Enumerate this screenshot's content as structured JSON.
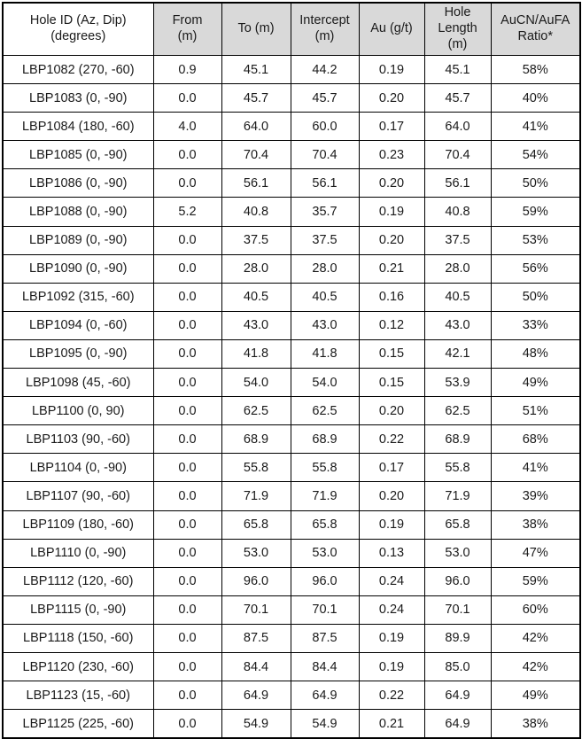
{
  "table": {
    "columns": [
      {
        "key": "hole_id",
        "label": "Hole ID (Az, Dip)\n(degrees)"
      },
      {
        "key": "from_m",
        "label": "From\n(m)"
      },
      {
        "key": "to_m",
        "label": "To (m)"
      },
      {
        "key": "intercept_m",
        "label": "Intercept\n(m)"
      },
      {
        "key": "au_gpt",
        "label": "Au (g/t)"
      },
      {
        "key": "hole_length_m",
        "label": "Hole\nLength\n(m)"
      },
      {
        "key": "aucn_aufa_ratio",
        "label": "AuCN/AuFA\nRatio*"
      }
    ],
    "rows": [
      {
        "hole_id": "LBP1082 (270, -60)",
        "from_m": "0.9",
        "to_m": "45.1",
        "intercept_m": "44.2",
        "au_gpt": "0.19",
        "hole_length_m": "45.1",
        "aucn_aufa_ratio": "58%"
      },
      {
        "hole_id": "LBP1083 (0, -90)",
        "from_m": "0.0",
        "to_m": "45.7",
        "intercept_m": "45.7",
        "au_gpt": "0.20",
        "hole_length_m": "45.7",
        "aucn_aufa_ratio": "40%"
      },
      {
        "hole_id": "LBP1084 (180, -60)",
        "from_m": "4.0",
        "to_m": "64.0",
        "intercept_m": "60.0",
        "au_gpt": "0.17",
        "hole_length_m": "64.0",
        "aucn_aufa_ratio": "41%"
      },
      {
        "hole_id": "LBP1085 (0, -90)",
        "from_m": "0.0",
        "to_m": "70.4",
        "intercept_m": "70.4",
        "au_gpt": "0.23",
        "hole_length_m": "70.4",
        "aucn_aufa_ratio": "54%"
      },
      {
        "hole_id": "LBP1086 (0, -90)",
        "from_m": "0.0",
        "to_m": "56.1",
        "intercept_m": "56.1",
        "au_gpt": "0.20",
        "hole_length_m": "56.1",
        "aucn_aufa_ratio": "50%"
      },
      {
        "hole_id": "LBP1088 (0, -90)",
        "from_m": "5.2",
        "to_m": "40.8",
        "intercept_m": "35.7",
        "au_gpt": "0.19",
        "hole_length_m": "40.8",
        "aucn_aufa_ratio": "59%"
      },
      {
        "hole_id": "LBP1089 (0, -90)",
        "from_m": "0.0",
        "to_m": "37.5",
        "intercept_m": "37.5",
        "au_gpt": "0.20",
        "hole_length_m": "37.5",
        "aucn_aufa_ratio": "53%"
      },
      {
        "hole_id": "LBP1090 (0, -90)",
        "from_m": "0.0",
        "to_m": "28.0",
        "intercept_m": "28.0",
        "au_gpt": "0.21",
        "hole_length_m": "28.0",
        "aucn_aufa_ratio": "56%"
      },
      {
        "hole_id": "LBP1092 (315, -60)",
        "from_m": "0.0",
        "to_m": "40.5",
        "intercept_m": "40.5",
        "au_gpt": "0.16",
        "hole_length_m": "40.5",
        "aucn_aufa_ratio": "50%"
      },
      {
        "hole_id": "LBP1094 (0, -60)",
        "from_m": "0.0",
        "to_m": "43.0",
        "intercept_m": "43.0",
        "au_gpt": "0.12",
        "hole_length_m": "43.0",
        "aucn_aufa_ratio": "33%"
      },
      {
        "hole_id": "LBP1095 (0, -90)",
        "from_m": "0.0",
        "to_m": "41.8",
        "intercept_m": "41.8",
        "au_gpt": "0.15",
        "hole_length_m": "42.1",
        "aucn_aufa_ratio": "48%"
      },
      {
        "hole_id": "LBP1098 (45, -60)",
        "from_m": "0.0",
        "to_m": "54.0",
        "intercept_m": "54.0",
        "au_gpt": "0.15",
        "hole_length_m": "53.9",
        "aucn_aufa_ratio": "49%"
      },
      {
        "hole_id": "LBP1100 (0, 90)",
        "from_m": "0.0",
        "to_m": "62.5",
        "intercept_m": "62.5",
        "au_gpt": "0.20",
        "hole_length_m": "62.5",
        "aucn_aufa_ratio": "51%"
      },
      {
        "hole_id": "LBP1103 (90, -60)",
        "from_m": "0.0",
        "to_m": "68.9",
        "intercept_m": "68.9",
        "au_gpt": "0.22",
        "hole_length_m": "68.9",
        "aucn_aufa_ratio": "68%"
      },
      {
        "hole_id": "LBP1104 (0, -90)",
        "from_m": "0.0",
        "to_m": "55.8",
        "intercept_m": "55.8",
        "au_gpt": "0.17",
        "hole_length_m": "55.8",
        "aucn_aufa_ratio": "41%"
      },
      {
        "hole_id": "LBP1107 (90, -60)",
        "from_m": "0.0",
        "to_m": "71.9",
        "intercept_m": "71.9",
        "au_gpt": "0.20",
        "hole_length_m": "71.9",
        "aucn_aufa_ratio": "39%"
      },
      {
        "hole_id": "LBP1109 (180, -60)",
        "from_m": "0.0",
        "to_m": "65.8",
        "intercept_m": "65.8",
        "au_gpt": "0.19",
        "hole_length_m": "65.8",
        "aucn_aufa_ratio": "38%"
      },
      {
        "hole_id": "LBP1110 (0, -90)",
        "from_m": "0.0",
        "to_m": "53.0",
        "intercept_m": "53.0",
        "au_gpt": "0.13",
        "hole_length_m": "53.0",
        "aucn_aufa_ratio": "47%"
      },
      {
        "hole_id": "LBP1112 (120, -60)",
        "from_m": "0.0",
        "to_m": "96.0",
        "intercept_m": "96.0",
        "au_gpt": "0.24",
        "hole_length_m": "96.0",
        "aucn_aufa_ratio": "59%"
      },
      {
        "hole_id": "LBP1115 (0, -90)",
        "from_m": "0.0",
        "to_m": "70.1",
        "intercept_m": "70.1",
        "au_gpt": "0.24",
        "hole_length_m": "70.1",
        "aucn_aufa_ratio": "60%"
      },
      {
        "hole_id": "LBP1118 (150, -60)",
        "from_m": "0.0",
        "to_m": "87.5",
        "intercept_m": "87.5",
        "au_gpt": "0.19",
        "hole_length_m": "89.9",
        "aucn_aufa_ratio": "42%"
      },
      {
        "hole_id": "LBP1120 (230, -60)",
        "from_m": "0.0",
        "to_m": "84.4",
        "intercept_m": "84.4",
        "au_gpt": "0.19",
        "hole_length_m": "85.0",
        "aucn_aufa_ratio": "42%"
      },
      {
        "hole_id": "LBP1123 (15, -60)",
        "from_m": "0.0",
        "to_m": "64.9",
        "intercept_m": "64.9",
        "au_gpt": "0.22",
        "hole_length_m": "64.9",
        "aucn_aufa_ratio": "49%"
      },
      {
        "hole_id": "LBP1125 (225, -60)",
        "from_m": "0.0",
        "to_m": "54.9",
        "intercept_m": "54.9",
        "au_gpt": "0.21",
        "hole_length_m": "64.9",
        "aucn_aufa_ratio": "38%"
      }
    ]
  },
  "colors": {
    "header_bg": "#d9d9d9",
    "first_header_bg": "#ffffff",
    "border": "#000000",
    "text": "#1a1a1a",
    "cell_bg": "#ffffff"
  }
}
